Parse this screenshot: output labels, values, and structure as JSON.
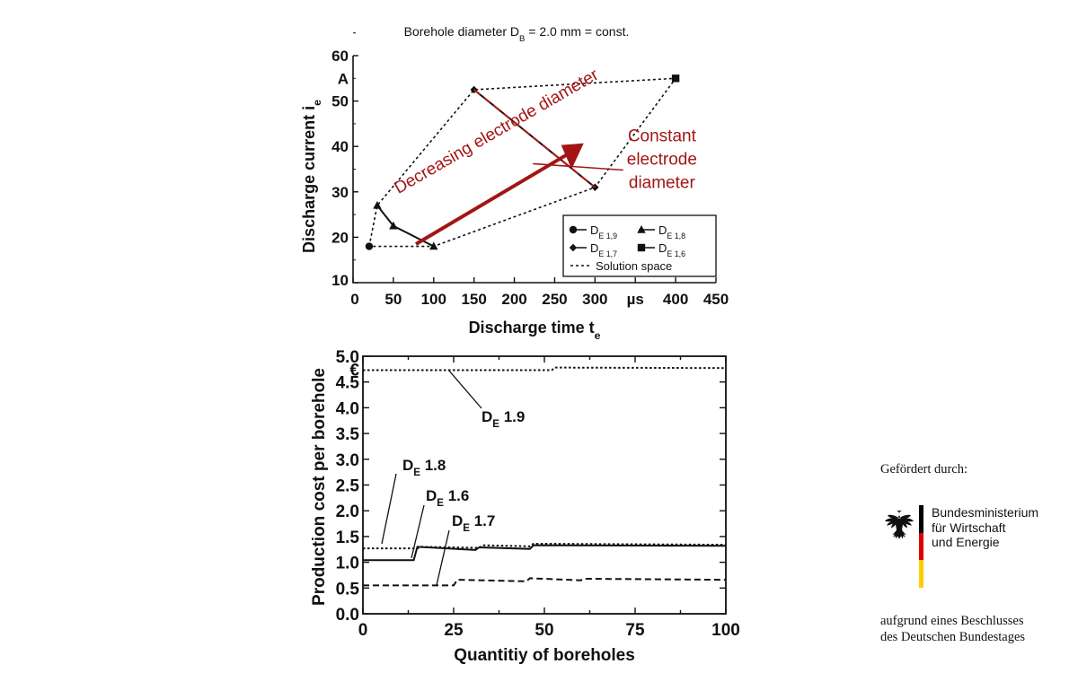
{
  "chart_data": [
    {
      "type": "scatter",
      "title": "Borehole diameter D",
      "title_sub": "B",
      "title_tail": " = 2.0 mm = const.",
      "xlabel": "Discharge time t",
      "xlabel_sub": "e",
      "ylabel": "Discharge current i",
      "ylabel_sub": "e",
      "x_unit": "µs",
      "y_unit": "A",
      "xlim": [
        0,
        450
      ],
      "ylim": [
        10,
        60
      ],
      "x_ticks": [
        0,
        50,
        100,
        150,
        200,
        250,
        300,
        400,
        450
      ],
      "y_ticks": [
        10,
        20,
        30,
        40,
        50,
        60
      ],
      "series": [
        {
          "name": "D",
          "sub": "E 1,9",
          "marker": "circle",
          "line": "solid",
          "points": [
            [
              20,
              18
            ]
          ]
        },
        {
          "name": "D",
          "sub": "E 1,8",
          "marker": "triangle",
          "line": "solid",
          "points": [
            [
              30,
              27
            ],
            [
              50,
              22.5
            ],
            [
              100,
              18
            ]
          ]
        },
        {
          "name": "D",
          "sub": "E 1,7",
          "marker": "diamond",
          "line": "solid",
          "points": [
            [
              150,
              52.5
            ],
            [
              300,
              31
            ]
          ]
        },
        {
          "name": "D",
          "sub": "E 1,6",
          "marker": "square",
          "line": "solid",
          "points": [
            [
              400,
              55
            ]
          ]
        },
        {
          "name": "Solution space",
          "marker": "none",
          "line": "dotted",
          "points": [
            [
              20,
              18
            ],
            [
              30,
              27
            ],
            [
              150,
              52.5
            ],
            [
              400,
              55
            ],
            [
              300,
              31
            ],
            [
              100,
              18
            ],
            [
              20,
              18
            ]
          ]
        }
      ],
      "annotations": [
        {
          "text": "Decreasing electrode diameter",
          "color": "#a31515"
        },
        {
          "lines": [
            "Constant",
            "electrode",
            "diameter"
          ],
          "color": "#a31515"
        }
      ],
      "legend_position": "bottom-right"
    },
    {
      "type": "line",
      "xlabel": "Quantitiy of boreholes",
      "ylabel": "Production cost per borehole",
      "y_unit": "€",
      "xlim": [
        0,
        100
      ],
      "ylim": [
        0,
        5
      ],
      "x_ticks": [
        0,
        25,
        50,
        75,
        100
      ],
      "y_ticks": [
        "0.0",
        "0.5",
        "1.0",
        "1.5",
        "2.0",
        "2.5",
        "3.0",
        "3.5",
        "4.0",
        "4.5",
        "5.0"
      ],
      "series": [
        {
          "name": "D",
          "sub": "E",
          "num": " 1.9",
          "style": "dotted",
          "x": [
            0,
            52,
            53,
            100
          ],
          "y": [
            4.73,
            4.73,
            4.78,
            4.77
          ]
        },
        {
          "name": "D",
          "sub": "E",
          "num": " 1.8",
          "style": "dotted",
          "x": [
            0,
            15,
            16,
            32,
            33,
            46,
            47,
            100
          ],
          "y": [
            1.27,
            1.27,
            1.3,
            1.28,
            1.33,
            1.31,
            1.36,
            1.34
          ]
        },
        {
          "name": "D",
          "sub": "E",
          "num": " 1.6",
          "style": "solid",
          "x": [
            0,
            14,
            15,
            31,
            32,
            46,
            47,
            100
          ],
          "y": [
            1.04,
            1.04,
            1.3,
            1.24,
            1.29,
            1.26,
            1.33,
            1.32
          ]
        },
        {
          "name": "D",
          "sub": "E",
          "num": " 1.7",
          "style": "dashed",
          "x": [
            0,
            25,
            26,
            45,
            46,
            60,
            61,
            100
          ],
          "y": [
            0.55,
            0.55,
            0.66,
            0.63,
            0.69,
            0.65,
            0.68,
            0.66
          ]
        }
      ]
    }
  ],
  "funding": {
    "by_label": "Gefördert durch:",
    "ministry_lines": [
      "Bundesministerium",
      "für Wirtschaft",
      "und Energie"
    ],
    "decision_lines": [
      "aufgrund eines Beschlusses",
      "des Deutschen Bundestages"
    ],
    "flag_colors": [
      "#000000",
      "#dd0000",
      "#ffcc00"
    ],
    "emblem_icon": "federal-eagle-icon"
  }
}
